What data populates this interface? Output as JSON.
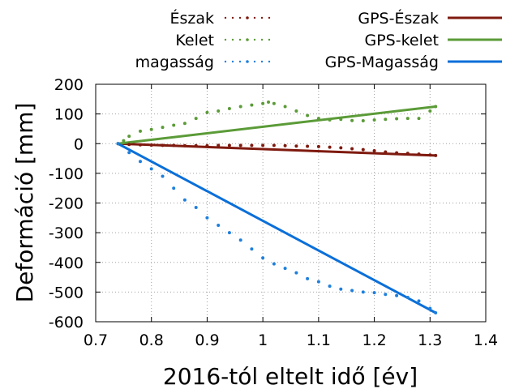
{
  "chart_data": {
    "type": "scatter",
    "title": "",
    "xlabel": "2016-tól eltelt idő [év]",
    "ylabel": "Deformáció [mm]",
    "xlim": [
      0.7,
      1.4
    ],
    "ylim": [
      -600,
      200
    ],
    "xticks": [
      0.7,
      0.8,
      0.9,
      1,
      1.1,
      1.2,
      1.3,
      1.4
    ],
    "xtick_labels": [
      "0.7",
      "0.8",
      "0.9",
      "1",
      "1.1",
      "1.2",
      "1.3",
      "1.4"
    ],
    "yticks": [
      200,
      100,
      0,
      -100,
      -200,
      -300,
      -400,
      -500,
      -600
    ],
    "ytick_labels": [
      "200",
      "100",
      "0",
      "-100",
      "-200",
      "-300",
      "-400",
      "-500",
      "-600"
    ],
    "grid": true,
    "legend_position": "top",
    "series": [
      {
        "name": "Észak",
        "kind": "points",
        "color": "#7f1a0f",
        "x": [
          0.74,
          0.76,
          0.78,
          0.8,
          0.82,
          0.84,
          0.86,
          0.88,
          0.9,
          0.92,
          0.94,
          0.96,
          0.98,
          1.0,
          1.02,
          1.04,
          1.06,
          1.08,
          1.1,
          1.12,
          1.14,
          1.16,
          1.18,
          1.2,
          1.22,
          1.24,
          1.26,
          1.28,
          1.3,
          1.31
        ],
        "y": [
          0,
          -3,
          -4,
          -5,
          -6,
          -6,
          -7,
          -7,
          -7,
          -6,
          -6,
          -6,
          -6,
          -6,
          -6,
          -7,
          -8,
          -9,
          -10,
          -12,
          -14,
          -17,
          -20,
          -24,
          -28,
          -31,
          -33,
          -35,
          -38,
          -40
        ]
      },
      {
        "name": "Kelet",
        "kind": "points",
        "color": "#5b9b38",
        "x": [
          0.74,
          0.75,
          0.76,
          0.78,
          0.8,
          0.82,
          0.84,
          0.86,
          0.88,
          0.9,
          0.92,
          0.94,
          0.96,
          0.98,
          1.0,
          1.01,
          1.02,
          1.04,
          1.06,
          1.08,
          1.1,
          1.12,
          1.14,
          1.16,
          1.18,
          1.2,
          1.22,
          1.24,
          1.26,
          1.28,
          1.3,
          1.31
        ],
        "y": [
          0,
          10,
          25,
          42,
          48,
          55,
          62,
          68,
          85,
          105,
          110,
          118,
          125,
          130,
          135,
          140,
          135,
          125,
          110,
          95,
          85,
          80,
          82,
          78,
          77,
          80,
          82,
          84,
          85,
          85,
          110,
          125
        ]
      },
      {
        "name": "magasság",
        "kind": "points",
        "color": "#1e7fdc",
        "x": [
          0.74,
          0.76,
          0.78,
          0.8,
          0.82,
          0.84,
          0.86,
          0.88,
          0.9,
          0.92,
          0.94,
          0.96,
          0.98,
          1.0,
          1.02,
          1.04,
          1.06,
          1.08,
          1.1,
          1.12,
          1.14,
          1.16,
          1.18,
          1.2,
          1.22,
          1.24,
          1.26,
          1.28,
          1.3,
          1.31
        ],
        "y": [
          0,
          -30,
          -60,
          -85,
          -110,
          -150,
          -190,
          -215,
          -250,
          -275,
          -300,
          -325,
          -355,
          -385,
          -405,
          -420,
          -435,
          -455,
          -465,
          -480,
          -490,
          -495,
          -500,
          -502,
          -508,
          -512,
          -518,
          -530,
          -555,
          -570
        ]
      },
      {
        "name": "GPS-Észak",
        "kind": "line",
        "color": "#7f1a0f",
        "x": [
          0.74,
          1.31
        ],
        "y": [
          0,
          -40
        ]
      },
      {
        "name": "GPS-kelet",
        "kind": "line",
        "color": "#5b9b38",
        "x": [
          0.74,
          1.31
        ],
        "y": [
          0,
          125
        ]
      },
      {
        "name": "GPS-Magasság",
        "kind": "line",
        "color": "#0a6fd9",
        "x": [
          0.74,
          1.31
        ],
        "y": [
          0,
          -570
        ]
      }
    ]
  }
}
